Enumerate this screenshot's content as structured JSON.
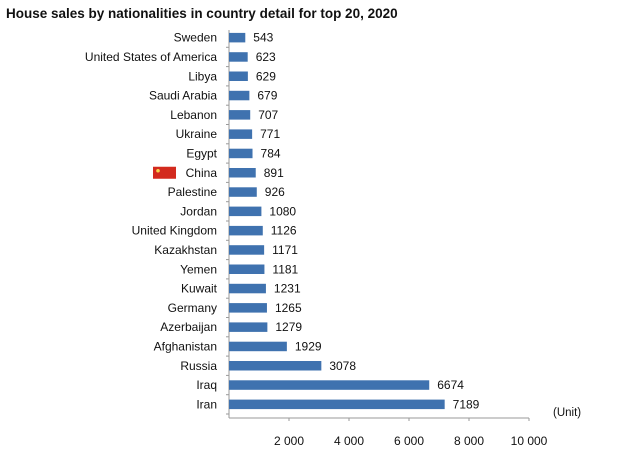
{
  "chart_data": {
    "type": "bar",
    "orientation": "horizontal",
    "title": "House sales by nationalities in country detail for top 20, 2020",
    "categories": [
      "Sweden",
      "United States of America",
      "Libya",
      "Saudi Arabia",
      "Lebanon",
      "Ukraine",
      "Egypt",
      "China",
      "Palestine",
      "Jordan",
      "United Kingdom",
      "Kazakhstan",
      "Yemen",
      "Kuwait",
      "Germany",
      "Azerbaijan",
      "Afghanistan",
      "Russia",
      "Iraq",
      "Iran"
    ],
    "values": [
      543,
      623,
      629,
      679,
      707,
      771,
      784,
      891,
      926,
      1080,
      1126,
      1171,
      1181,
      1231,
      1265,
      1279,
      1929,
      3078,
      6674,
      7189
    ],
    "xlim": [
      0,
      10000
    ],
    "xticks": [
      2000,
      4000,
      6000,
      8000,
      10000
    ],
    "xtick_labels": [
      "2 000",
      "4 000",
      "6 000",
      "8 000",
      "10 000"
    ],
    "unit_label": "(Unit)",
    "bar_color": "#3f72af",
    "highlight": {
      "category": "China",
      "icon": "china-flag-icon",
      "flag_color": "#d32a1e"
    },
    "grid": false
  }
}
